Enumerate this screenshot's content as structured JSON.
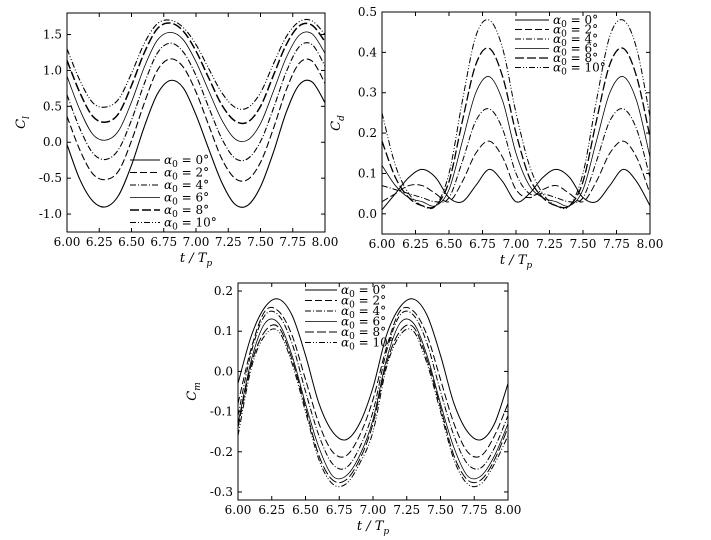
{
  "chart_data": [
    {
      "type": "line",
      "ylabel_main": "C",
      "ylabel_sub": "l",
      "xlabel_main": "t / T",
      "xlabel_sub": "p",
      "xlim": [
        6.0,
        8.0
      ],
      "ylim": [
        -1.25,
        1.8
      ],
      "xticks": [
        "6.00",
        "6.25",
        "6.50",
        "6.75",
        "7.00",
        "7.25",
        "7.50",
        "7.75",
        "8.00"
      ],
      "yticks": [
        "-1.0",
        "-0.5",
        "0.0",
        "0.5",
        "1.0",
        "1.5"
      ],
      "ytick_values": [
        -1.0,
        -0.5,
        0.0,
        0.5,
        1.0,
        1.5
      ],
      "legend_position": "bottom-center",
      "x": [
        6.0,
        6.1,
        6.2,
        6.3,
        6.4,
        6.5,
        6.6,
        6.7,
        6.8,
        6.9,
        7.0,
        7.1,
        7.2,
        7.3,
        7.4,
        7.5,
        7.6,
        7.7,
        7.8,
        7.9,
        8.0
      ],
      "series": [
        {
          "name": "α0 = 0°",
          "dash": "",
          "width": 1.1,
          "values": [
            -0.03,
            -0.52,
            -0.82,
            -0.9,
            -0.74,
            -0.32,
            0.22,
            0.67,
            0.86,
            0.76,
            0.38,
            -0.1,
            -0.56,
            -0.86,
            -0.88,
            -0.62,
            -0.14,
            0.42,
            0.8,
            0.84,
            0.55
          ]
        },
        {
          "name": "α0 = 2°",
          "dash": "7,3",
          "width": 1.1,
          "values": [
            0.36,
            -0.11,
            -0.44,
            -0.52,
            -0.4,
            0.02,
            0.55,
            1.0,
            1.16,
            1.05,
            0.7,
            0.23,
            -0.23,
            -0.5,
            -0.52,
            -0.28,
            0.19,
            0.73,
            1.1,
            1.13,
            0.82
          ]
        },
        {
          "name": "α0 = 4°",
          "dash": "6,2,1,2",
          "width": 1.1,
          "values": [
            0.66,
            0.19,
            -0.15,
            -0.24,
            -0.1,
            0.31,
            0.82,
            1.24,
            1.38,
            1.26,
            0.93,
            0.48,
            0.05,
            -0.22,
            -0.23,
            0.01,
            0.47,
            0.98,
            1.33,
            1.36,
            1.06
          ]
        },
        {
          "name": "α0 = 6°",
          "dash": "",
          "width": 0.8,
          "values": [
            0.92,
            0.45,
            0.11,
            0.03,
            0.16,
            0.56,
            1.05,
            1.42,
            1.53,
            1.43,
            1.12,
            0.71,
            0.31,
            0.05,
            0.03,
            0.26,
            0.71,
            1.18,
            1.49,
            1.51,
            1.24
          ]
        },
        {
          "name": "α0 = 8°",
          "dash": "9,3",
          "width": 1.5,
          "values": [
            1.14,
            0.69,
            0.36,
            0.28,
            0.4,
            0.79,
            1.25,
            1.58,
            1.66,
            1.55,
            1.27,
            0.89,
            0.52,
            0.3,
            0.28,
            0.5,
            0.93,
            1.36,
            1.62,
            1.63,
            1.4
          ]
        },
        {
          "name": "α0 = 10°",
          "dash": "6,2,1,2,1,2",
          "width": 1.1,
          "values": [
            1.3,
            0.86,
            0.55,
            0.49,
            0.6,
            0.96,
            1.38,
            1.65,
            1.7,
            1.6,
            1.36,
            1.02,
            0.69,
            0.49,
            0.48,
            0.69,
            1.09,
            1.47,
            1.68,
            1.69,
            1.5
          ]
        }
      ]
    },
    {
      "type": "line",
      "ylabel_main": "C",
      "ylabel_sub": "d",
      "xlabel_main": "t / T",
      "xlabel_sub": "p",
      "xlim": [
        6.0,
        8.0
      ],
      "ylim": [
        -0.05,
        0.5
      ],
      "xticks": [
        "6.00",
        "6.25",
        "6.50",
        "6.75",
        "7.00",
        "7.25",
        "7.50",
        "7.75",
        "8.00"
      ],
      "yticks": [
        "0.0",
        "0.1",
        "0.2",
        "0.3",
        "0.4",
        "0.5"
      ],
      "ytick_values": [
        0.0,
        0.1,
        0.2,
        0.3,
        0.4,
        0.5
      ],
      "legend_position": "top-right",
      "x": [
        6.0,
        6.1,
        6.2,
        6.3,
        6.4,
        6.5,
        6.6,
        6.7,
        6.8,
        6.9,
        7.0,
        7.1,
        7.2,
        7.3,
        7.4,
        7.5,
        7.6,
        7.7,
        7.8,
        7.9,
        8.0
      ],
      "series": [
        {
          "name": "α0 = 0°",
          "dash": "",
          "width": 1.0,
          "values": [
            0.01,
            0.05,
            0.09,
            0.11,
            0.09,
            0.04,
            0.03,
            0.07,
            0.11,
            0.08,
            0.03,
            0.05,
            0.09,
            0.11,
            0.09,
            0.04,
            0.03,
            0.07,
            0.11,
            0.08,
            0.02
          ]
        },
        {
          "name": "α0 = 2°",
          "dash": "7,3",
          "width": 1.0,
          "values": [
            0.03,
            0.05,
            0.07,
            0.07,
            0.05,
            0.03,
            0.08,
            0.15,
            0.18,
            0.14,
            0.06,
            0.04,
            0.06,
            0.07,
            0.05,
            0.03,
            0.08,
            0.15,
            0.18,
            0.14,
            0.05
          ]
        },
        {
          "name": "α0 = 4°",
          "dash": "6,2,1,2",
          "width": 1.0,
          "values": [
            0.07,
            0.06,
            0.05,
            0.04,
            0.03,
            0.04,
            0.13,
            0.23,
            0.26,
            0.21,
            0.1,
            0.05,
            0.05,
            0.04,
            0.03,
            0.04,
            0.13,
            0.23,
            0.26,
            0.21,
            0.09
          ]
        },
        {
          "name": "α0 = 6°",
          "dash": "",
          "width": 0.8,
          "values": [
            0.12,
            0.07,
            0.04,
            0.03,
            0.02,
            0.06,
            0.18,
            0.3,
            0.34,
            0.28,
            0.15,
            0.07,
            0.04,
            0.03,
            0.02,
            0.06,
            0.18,
            0.3,
            0.34,
            0.28,
            0.14
          ]
        },
        {
          "name": "α0 = 8°",
          "dash": "9,3",
          "width": 1.3,
          "values": [
            0.18,
            0.09,
            0.04,
            0.02,
            0.02,
            0.08,
            0.23,
            0.37,
            0.41,
            0.34,
            0.2,
            0.09,
            0.04,
            0.02,
            0.02,
            0.08,
            0.23,
            0.37,
            0.41,
            0.34,
            0.19
          ]
        },
        {
          "name": "α0 = 10°",
          "dash": "6,2,1,2,1,2",
          "width": 1.0,
          "values": [
            0.25,
            0.12,
            0.05,
            0.02,
            0.02,
            0.1,
            0.28,
            0.44,
            0.48,
            0.41,
            0.25,
            0.12,
            0.05,
            0.02,
            0.02,
            0.1,
            0.28,
            0.44,
            0.48,
            0.41,
            0.24
          ]
        }
      ]
    },
    {
      "type": "line",
      "ylabel_main": "C",
      "ylabel_sub": "m",
      "xlabel_main": "t / T",
      "xlabel_sub": "p",
      "xlim": [
        6.0,
        8.0
      ],
      "ylim": [
        -0.32,
        0.22
      ],
      "xticks": [
        "6.00",
        "6.25",
        "6.50",
        "6.75",
        "7.00",
        "7.25",
        "7.50",
        "7.75",
        "8.00"
      ],
      "yticks": [
        "-0.3",
        "-0.2",
        "-0.1",
        "0.0",
        "0.1",
        "0.2"
      ],
      "ytick_values": [
        -0.3,
        -0.2,
        -0.1,
        0.0,
        0.1,
        0.2
      ],
      "legend_position": "top-center",
      "x": [
        6.0,
        6.1,
        6.2,
        6.3,
        6.4,
        6.5,
        6.6,
        6.7,
        6.8,
        6.9,
        7.0,
        7.1,
        7.2,
        7.3,
        7.4,
        7.5,
        7.6,
        7.7,
        7.8,
        7.9,
        8.0
      ],
      "series": [
        {
          "name": "α0 = 0°",
          "dash": "",
          "width": 1.0,
          "values": [
            -0.03,
            0.09,
            0.16,
            0.18,
            0.14,
            0.04,
            -0.08,
            -0.15,
            -0.17,
            -0.13,
            -0.04,
            0.09,
            0.16,
            0.18,
            0.14,
            0.04,
            -0.08,
            -0.15,
            -0.17,
            -0.13,
            -0.03
          ]
        },
        {
          "name": "α0 = 2°",
          "dash": "7,3",
          "width": 1.0,
          "values": [
            -0.08,
            0.06,
            0.15,
            0.15,
            0.09,
            -0.02,
            -0.13,
            -0.2,
            -0.21,
            -0.16,
            -0.07,
            0.06,
            0.15,
            0.15,
            0.09,
            -0.02,
            -0.13,
            -0.2,
            -0.21,
            -0.16,
            -0.08
          ]
        },
        {
          "name": "α0 = 4°",
          "dash": "6,2,1,2",
          "width": 1.0,
          "values": [
            -0.11,
            0.05,
            0.14,
            0.14,
            0.07,
            -0.05,
            -0.16,
            -0.23,
            -0.24,
            -0.19,
            -0.1,
            0.05,
            0.14,
            0.14,
            0.07,
            -0.05,
            -0.16,
            -0.23,
            -0.24,
            -0.19,
            -0.11
          ]
        },
        {
          "name": "α0 = 6°",
          "dash": "",
          "width": 0.8,
          "values": [
            -0.13,
            0.03,
            0.12,
            0.12,
            0.04,
            -0.08,
            -0.19,
            -0.26,
            -0.26,
            -0.21,
            -0.12,
            0.03,
            0.12,
            0.12,
            0.04,
            -0.08,
            -0.19,
            -0.26,
            -0.26,
            -0.21,
            -0.13
          ]
        },
        {
          "name": "α0 = 8°",
          "dash": "9,3",
          "width": 1.0,
          "values": [
            -0.14,
            0.02,
            0.1,
            0.11,
            0.03,
            -0.09,
            -0.21,
            -0.27,
            -0.27,
            -0.22,
            -0.13,
            0.02,
            0.1,
            0.11,
            0.03,
            -0.09,
            -0.21,
            -0.27,
            -0.27,
            -0.22,
            -0.14
          ]
        },
        {
          "name": "α0 = 10°",
          "dash": "6,2,1,2,1,2",
          "width": 1.0,
          "values": [
            -0.16,
            0.01,
            0.09,
            0.1,
            0.02,
            -0.1,
            -0.22,
            -0.28,
            -0.28,
            -0.23,
            -0.15,
            0.01,
            0.09,
            0.1,
            0.02,
            -0.1,
            -0.22,
            -0.28,
            -0.28,
            -0.23,
            -0.16
          ]
        }
      ]
    }
  ]
}
